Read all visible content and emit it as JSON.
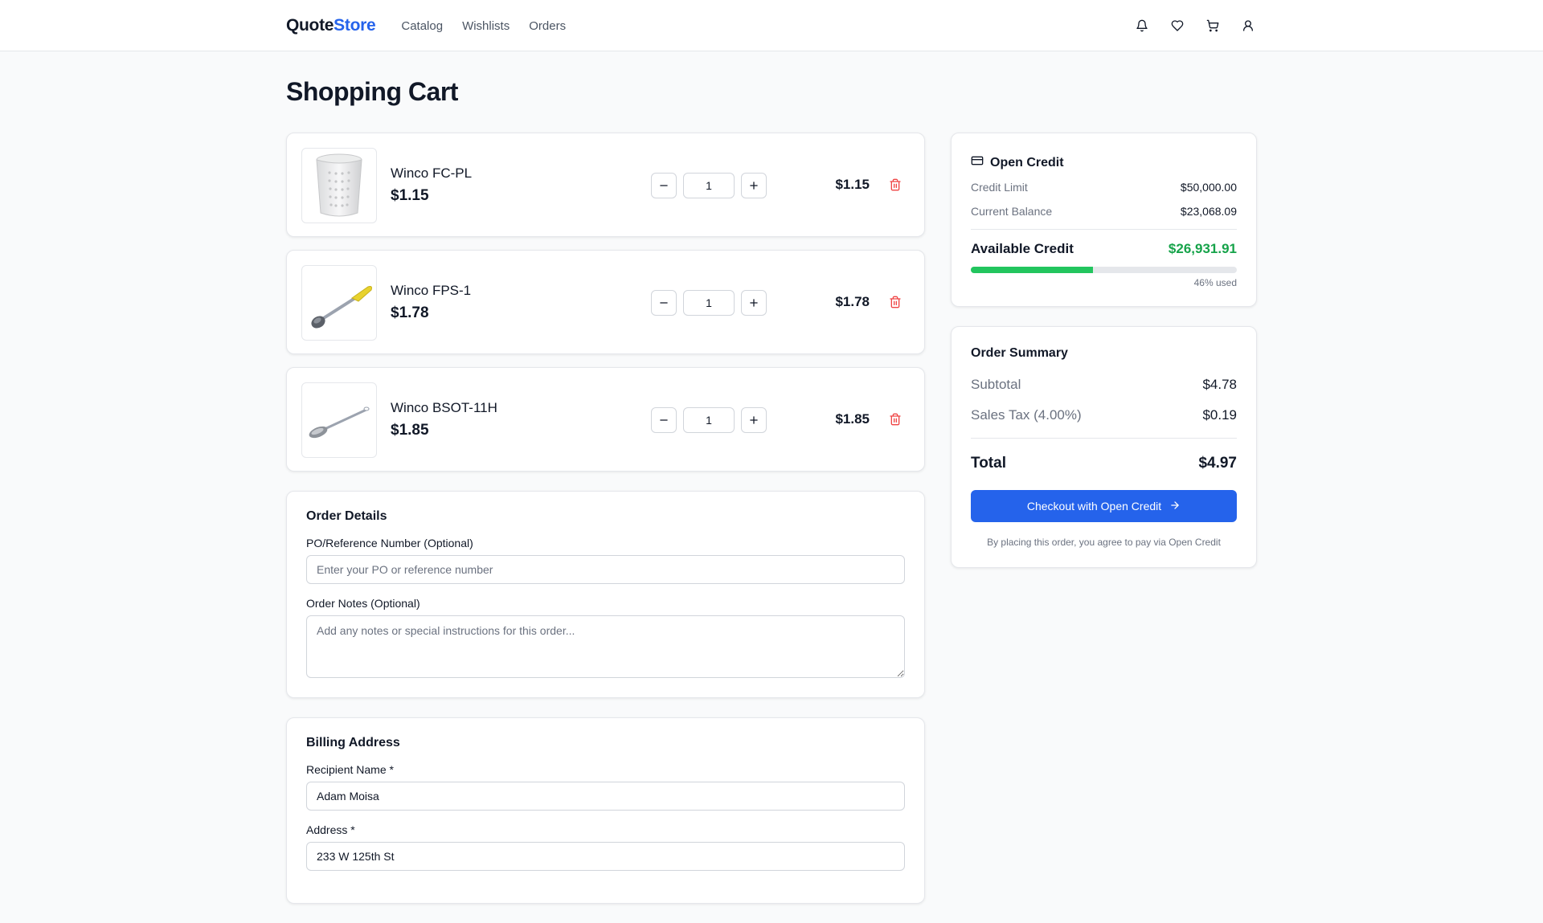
{
  "header": {
    "logo_main": "Quote",
    "logo_accent": "Store",
    "nav": [
      "Catalog",
      "Wishlists",
      "Orders"
    ],
    "icons": [
      "bell-icon",
      "heart-icon",
      "cart-icon",
      "user-icon"
    ]
  },
  "page_title": "Shopping Cart",
  "cart": {
    "items": [
      {
        "name": "Winco FC-PL",
        "price": "$1.15",
        "qty": "1",
        "line_total": "$1.15",
        "image": "cutlery-cylinder"
      },
      {
        "name": "Winco FPS-1",
        "price": "$1.78",
        "qty": "1",
        "line_total": "$1.78",
        "image": "portion-spoon"
      },
      {
        "name": "Winco BSOT-11H",
        "price": "$1.85",
        "qty": "1",
        "line_total": "$1.85",
        "image": "basting-spoon"
      }
    ]
  },
  "order_details": {
    "title": "Order Details",
    "po_label": "PO/Reference Number (Optional)",
    "po_placeholder": "Enter your PO or reference number",
    "notes_label": "Order Notes (Optional)",
    "notes_placeholder": "Add any notes or special instructions for this order..."
  },
  "billing": {
    "title": "Billing Address",
    "recipient_label": "Recipient Name *",
    "recipient_value": "Adam Moisa",
    "address_label": "Address *",
    "address_value": "233 W 125th St"
  },
  "credit": {
    "title": "Open Credit",
    "limit_label": "Credit Limit",
    "limit_value": "$50,000.00",
    "balance_label": "Current Balance",
    "balance_value": "$23,068.09",
    "available_label": "Available Credit",
    "available_value": "$26,931.91",
    "used_fraction": 0.46,
    "used_text": "46% used"
  },
  "summary": {
    "title": "Order Summary",
    "subtotal_label": "Subtotal",
    "subtotal_value": "$4.78",
    "tax_label": "Sales Tax (4.00%)",
    "tax_value": "$0.19",
    "total_label": "Total",
    "total_value": "$4.97",
    "checkout_label": "Checkout with Open Credit",
    "note": "By placing this order, you agree to pay via Open Credit"
  },
  "colors": {
    "accent": "#2563eb",
    "success": "#16a34a",
    "danger": "#ef4444"
  }
}
